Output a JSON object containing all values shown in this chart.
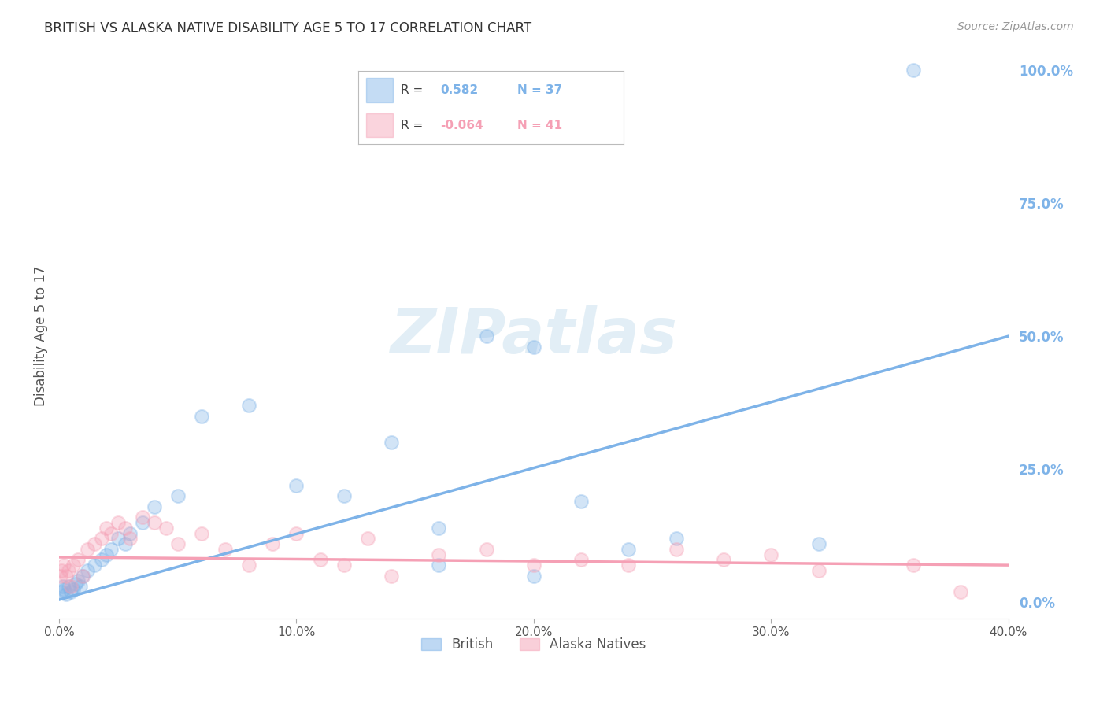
{
  "title": "BRITISH VS ALASKA NATIVE DISABILITY AGE 5 TO 17 CORRELATION CHART",
  "source": "Source: ZipAtlas.com",
  "ylabel": "Disability Age 5 to 17",
  "x_ticks": [
    0.0,
    10.0,
    20.0,
    30.0,
    40.0
  ],
  "x_tick_labels": [
    "0.0%",
    "10.0%",
    "20.0%",
    "30.0%",
    "40.0%"
  ],
  "y_ticks_right": [
    0.0,
    25.0,
    50.0,
    75.0,
    100.0
  ],
  "y_tick_labels_right": [
    "0.0%",
    "25.0%",
    "50.0%",
    "75.0%",
    "100.0%"
  ],
  "xlim": [
    0.0,
    40.0
  ],
  "ylim": [
    -3.0,
    103.0
  ],
  "british_color": "#7EB3E8",
  "alaska_color": "#F5A0B5",
  "british_R": 0.582,
  "british_N": 37,
  "alaska_R": -0.064,
  "alaska_N": 41,
  "legend_labels": [
    "British",
    "Alaska Natives"
  ],
  "watermark": "ZIPatlas",
  "british_scatter_x": [
    0.1,
    0.15,
    0.2,
    0.3,
    0.4,
    0.5,
    0.6,
    0.7,
    0.8,
    0.9,
    1.0,
    1.2,
    1.5,
    1.8,
    2.0,
    2.2,
    2.5,
    2.8,
    3.0,
    3.5,
    4.0,
    5.0,
    6.0,
    8.0,
    10.0,
    12.0,
    14.0,
    16.0,
    18.0,
    20.0,
    22.0,
    24.0,
    26.0,
    32.0,
    36.0,
    20.0,
    16.0
  ],
  "british_scatter_y": [
    2.0,
    3.0,
    2.5,
    1.5,
    3.0,
    2.0,
    2.5,
    3.5,
    4.0,
    3.0,
    5.0,
    6.0,
    7.0,
    8.0,
    9.0,
    10.0,
    12.0,
    11.0,
    13.0,
    15.0,
    18.0,
    20.0,
    35.0,
    37.0,
    22.0,
    20.0,
    30.0,
    7.0,
    50.0,
    5.0,
    19.0,
    10.0,
    12.0,
    11.0,
    100.0,
    48.0,
    14.0
  ],
  "alaska_scatter_x": [
    0.05,
    0.1,
    0.2,
    0.3,
    0.4,
    0.5,
    0.6,
    0.8,
    1.0,
    1.2,
    1.5,
    1.8,
    2.0,
    2.2,
    2.5,
    2.8,
    3.0,
    3.5,
    4.0,
    4.5,
    5.0,
    6.0,
    7.0,
    8.0,
    9.0,
    10.0,
    11.0,
    12.0,
    13.0,
    14.0,
    16.0,
    18.0,
    20.0,
    22.0,
    24.0,
    26.0,
    28.0,
    30.0,
    32.0,
    36.0,
    38.0
  ],
  "alaska_scatter_y": [
    5.0,
    6.0,
    7.0,
    5.0,
    6.0,
    3.0,
    7.0,
    8.0,
    5.0,
    10.0,
    11.0,
    12.0,
    14.0,
    13.0,
    15.0,
    14.0,
    12.0,
    16.0,
    15.0,
    14.0,
    11.0,
    13.0,
    10.0,
    7.0,
    11.0,
    13.0,
    8.0,
    7.0,
    12.0,
    5.0,
    9.0,
    10.0,
    7.0,
    8.0,
    7.0,
    10.0,
    8.0,
    9.0,
    6.0,
    7.0,
    2.0
  ],
  "british_line_x": [
    0.0,
    40.0
  ],
  "british_line_y": [
    0.5,
    50.0
  ],
  "alaska_line_x": [
    0.0,
    40.0
  ],
  "alaska_line_y": [
    8.5,
    7.0
  ],
  "background_color": "#FFFFFF",
  "grid_color": "#CCCCCC",
  "title_color": "#333333",
  "right_tick_color": "#7EB3E8"
}
